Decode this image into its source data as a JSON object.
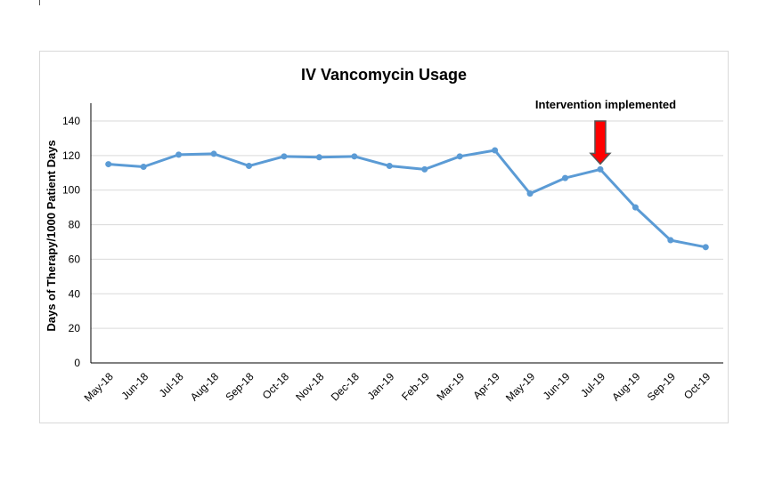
{
  "chart_data": {
    "type": "line",
    "title": "IV Vancomycin Usage",
    "xlabel": "",
    "ylabel": "Days of Therapy/1000 Patient Days",
    "ylim": [
      0,
      140
    ],
    "yticks": [
      0,
      20,
      40,
      60,
      80,
      100,
      120,
      140
    ],
    "grid": true,
    "legend": "none",
    "categories": [
      "May-18",
      "Jun-18",
      "Jul-18",
      "Aug-18",
      "Sep-18",
      "Oct-18",
      "Nov-18",
      "Dec-18",
      "Jan-19",
      "Feb-19",
      "Mar-19",
      "Apr-19",
      "May-19",
      "Jun-19",
      "Jul-19",
      "Aug-19",
      "Sep-19",
      "Oct-19"
    ],
    "series": [
      {
        "values": [
          115,
          113.5,
          120.5,
          121,
          114,
          119.5,
          119,
          119.5,
          114,
          112,
          119.5,
          123,
          98,
          107,
          112,
          90,
          71,
          67
        ]
      }
    ],
    "annotation": {
      "text": "Intervention implemented",
      "category": "Jul-19"
    },
    "colors": {
      "line": "#5b9bd5",
      "arrow": "#ff0000",
      "arrow_outline": "#555555",
      "grid": "#d9d9d9",
      "axis": "#000000"
    }
  }
}
